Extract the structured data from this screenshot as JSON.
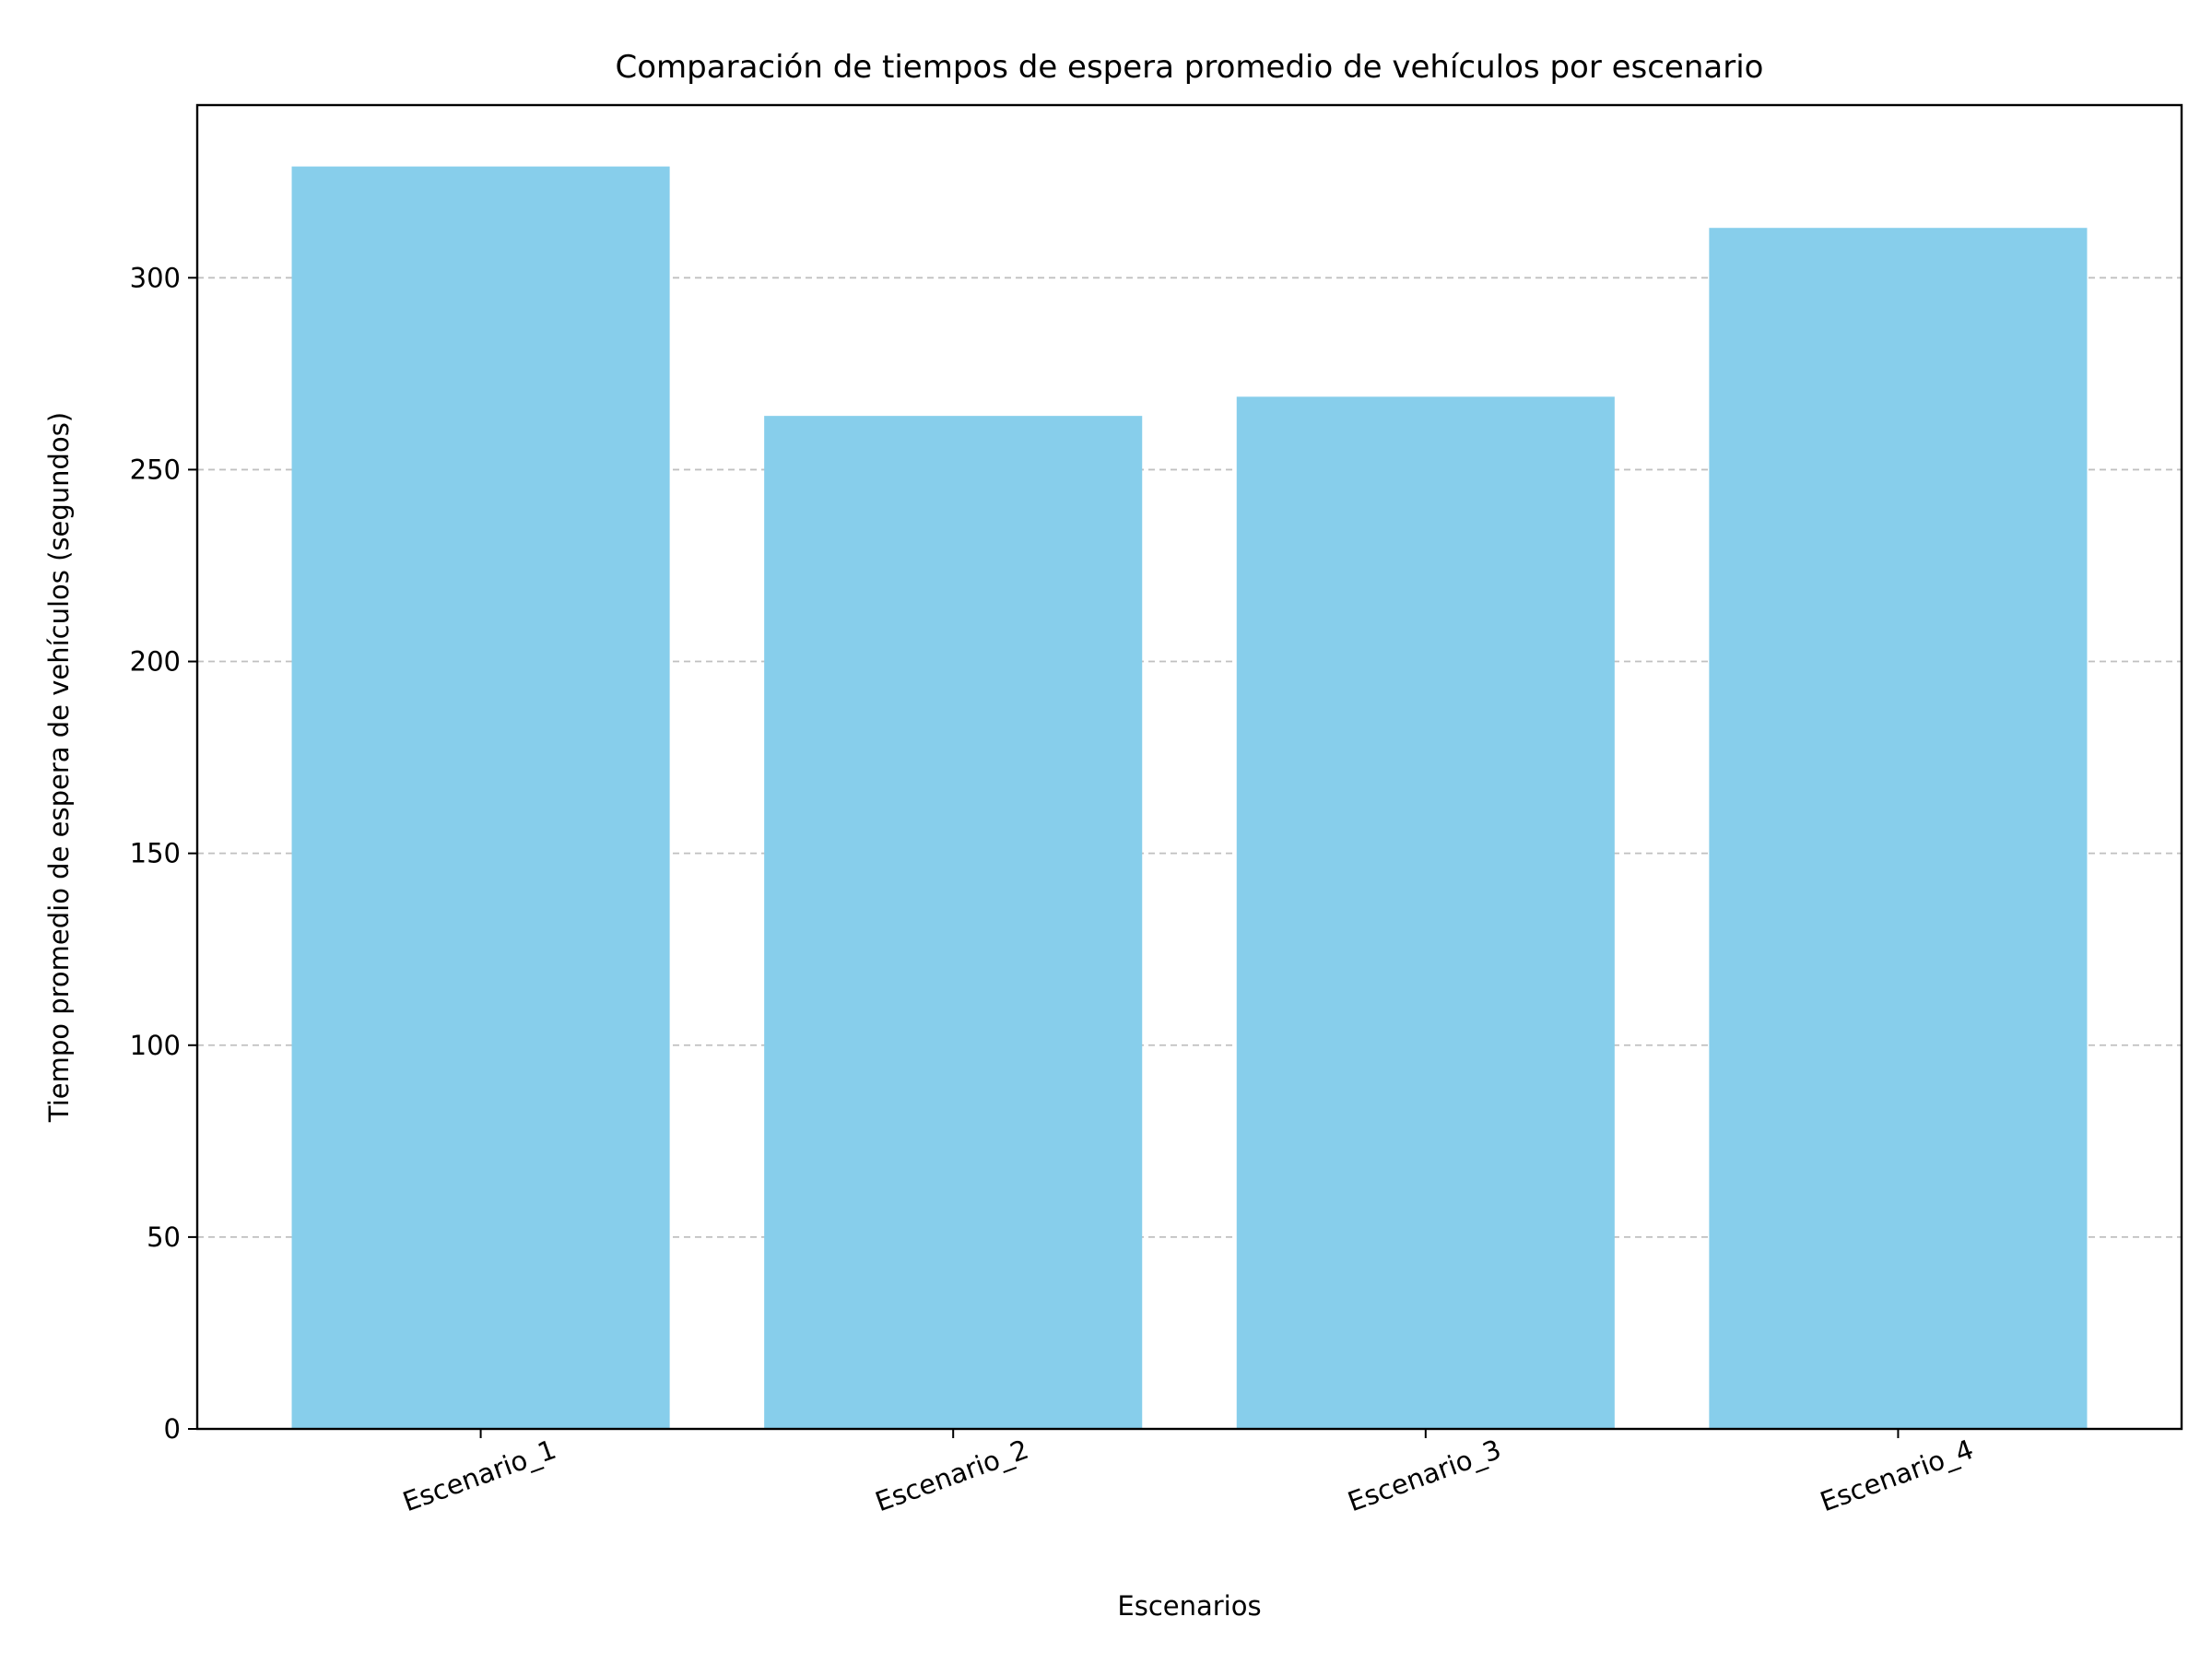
{
  "chart_data": {
    "type": "bar",
    "title": "Comparación de tiempos de espera promedio de vehículos por escenario",
    "xlabel": "Escenarios",
    "ylabel": "Tiempo promedio de espera de vehículos (segundos)",
    "categories": [
      "Escenario_1",
      "Escenario_2",
      "Escenario_3",
      "Escenario_4"
    ],
    "values": [
      329,
      264,
      269,
      313
    ],
    "ylim": [
      0,
      345
    ],
    "yticks": [
      0,
      50,
      100,
      150,
      200,
      250,
      300
    ],
    "grid": "y-dashed",
    "x_tick_rotation_deg": 20,
    "colors": {
      "bar": "#87CEEB",
      "grid": "#c0c0c0",
      "axis": "#000000"
    }
  }
}
